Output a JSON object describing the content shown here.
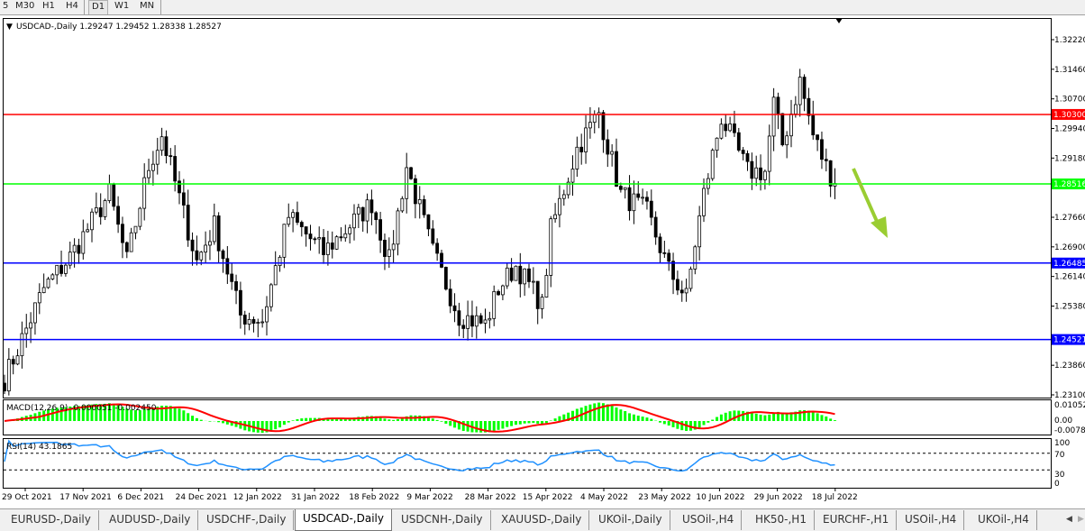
{
  "toolbar": {
    "timeframes": [
      "5",
      "M30",
      "H1",
      "H4",
      "D1",
      "W1",
      "MN"
    ],
    "active": "D1"
  },
  "chart": {
    "title": "USDCAD-,Daily",
    "ohlc": "1.29247 1.29452 1.28338 1.28527",
    "price_ticks": [
      "1.32220",
      "1.31460",
      "1.30700",
      "1.29940",
      "1.29180",
      "1.27660",
      "1.26900",
      "1.26140",
      "1.25380",
      "1.23860",
      "1.23100"
    ],
    "levels": [
      {
        "price": 1.303,
        "label": "1.30300",
        "color": "#ff0000"
      },
      {
        "price": 1.28516,
        "label": "1.28516",
        "color": "#00ff00"
      },
      {
        "price": 1.26485,
        "label": "1.26485",
        "color": "#0000ff"
      },
      {
        "price": 1.24521,
        "label": "1.24521",
        "color": "#0000ff"
      }
    ],
    "arrow_color": "#9acd32",
    "date_ticks": [
      "29 Oct 2021",
      "17 Nov 2021",
      "6 Dec 2021",
      "24 Dec 2021",
      "12 Jan 2022",
      "31 Jan 2022",
      "18 Feb 2022",
      "9 Mar 2022",
      "28 Mar 2022",
      "15 Apr 2022",
      "4 May 2022",
      "23 May 2022",
      "10 Jun 2022",
      "29 Jun 2022",
      "18 Jul 2022"
    ],
    "macd": {
      "label": "MACD(12,26,9) -0.000051 -0.002450",
      "ticks": [
        "0.010526",
        "0.00",
        "-0.00786"
      ],
      "hist_color": "#00ff00",
      "signal_color": "#ff0000"
    },
    "rsi": {
      "label": "RSI(14) 43.1865",
      "ticks": [
        "100",
        "70",
        "30",
        "0"
      ],
      "color": "#1e90ff"
    }
  },
  "chart_data": {
    "type": "candlestick",
    "title": "USDCAD-,Daily",
    "ylim": [
      1.231,
      1.3222
    ],
    "approx_close_path": [
      [
        0,
        1.235
      ],
      [
        9,
        1.2583
      ],
      [
        15,
        1.2664
      ],
      [
        24,
        1.2826
      ],
      [
        28,
        1.2653
      ],
      [
        33,
        1.2896
      ],
      [
        36,
        1.2977
      ],
      [
        44,
        1.2653
      ],
      [
        48,
        1.2745
      ],
      [
        54,
        1.2514
      ],
      [
        59,
        1.2502
      ],
      [
        65,
        1.2768
      ],
      [
        73,
        1.2676
      ],
      [
        84,
        1.2803
      ],
      [
        88,
        1.2653
      ],
      [
        92,
        1.2896
      ],
      [
        98,
        1.2676
      ],
      [
        104,
        1.2514
      ],
      [
        110,
        1.2491
      ],
      [
        113,
        1.2583
      ],
      [
        117,
        1.2641
      ],
      [
        122,
        1.256
      ],
      [
        123,
        1.2537
      ],
      [
        125,
        1.2734
      ],
      [
        131,
        1.2942
      ],
      [
        136,
        1.3035
      ],
      [
        141,
        1.2826
      ],
      [
        147,
        1.278
      ],
      [
        152,
        1.263
      ],
      [
        156,
        1.256
      ],
      [
        158,
        1.2699
      ],
      [
        160,
        1.2826
      ],
      [
        164,
        1.3023
      ],
      [
        170,
        1.2884
      ],
      [
        174,
        1.2884
      ],
      [
        176,
        1.3058
      ],
      [
        178,
        1.2953
      ],
      [
        182,
        1.3116
      ],
      [
        185,
        1.2977
      ],
      [
        188,
        1.2896
      ],
      [
        190,
        1.2853
      ]
    ]
  },
  "tabs": [
    "EURUSD-,Daily",
    "AUDUSD-,Daily",
    "USDCHF-,Daily",
    "USDCAD-,Daily",
    "USDCNH-,Daily",
    "XAUUSD-,Daily",
    "UKOil-,Daily",
    "USOil-,H4",
    "HK50-,H1",
    "EURCHF-,H1",
    "USOil-,H4",
    "UKOil-,H4"
  ],
  "active_tab": "USDCAD-,Daily"
}
